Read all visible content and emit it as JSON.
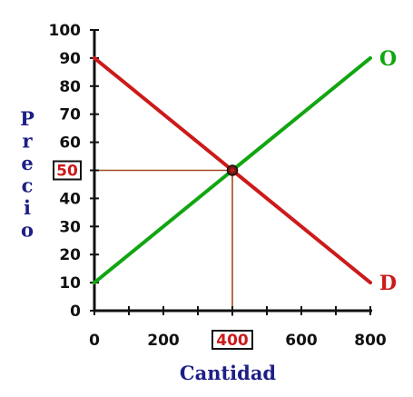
{
  "chart_data": {
    "type": "line",
    "xlabel": "Cantidad",
    "ylabel": "Precio",
    "xlim": [
      0,
      800
    ],
    "ylim": [
      0,
      100
    ],
    "x_ticks": [
      0,
      200,
      400,
      600,
      800
    ],
    "y_ticks": [
      0,
      10,
      20,
      30,
      40,
      50,
      60,
      70,
      80,
      90,
      100
    ],
    "series": [
      {
        "name": "O",
        "color": "#11a611",
        "x": [
          0,
          800
        ],
        "y": [
          10,
          90
        ]
      },
      {
        "name": "D",
        "color": "#cc1a1a",
        "x": [
          0,
          800
        ],
        "y": [
          90,
          10
        ]
      }
    ],
    "equilibrium": {
      "x": 400,
      "y": 50,
      "x_label": "400",
      "y_label": "50"
    },
    "grid": false,
    "colors": {
      "axis": "#111111",
      "axis_title": "#1d1f86",
      "guide": "#a54a25",
      "highlight_text": "#cc1a1a"
    }
  }
}
